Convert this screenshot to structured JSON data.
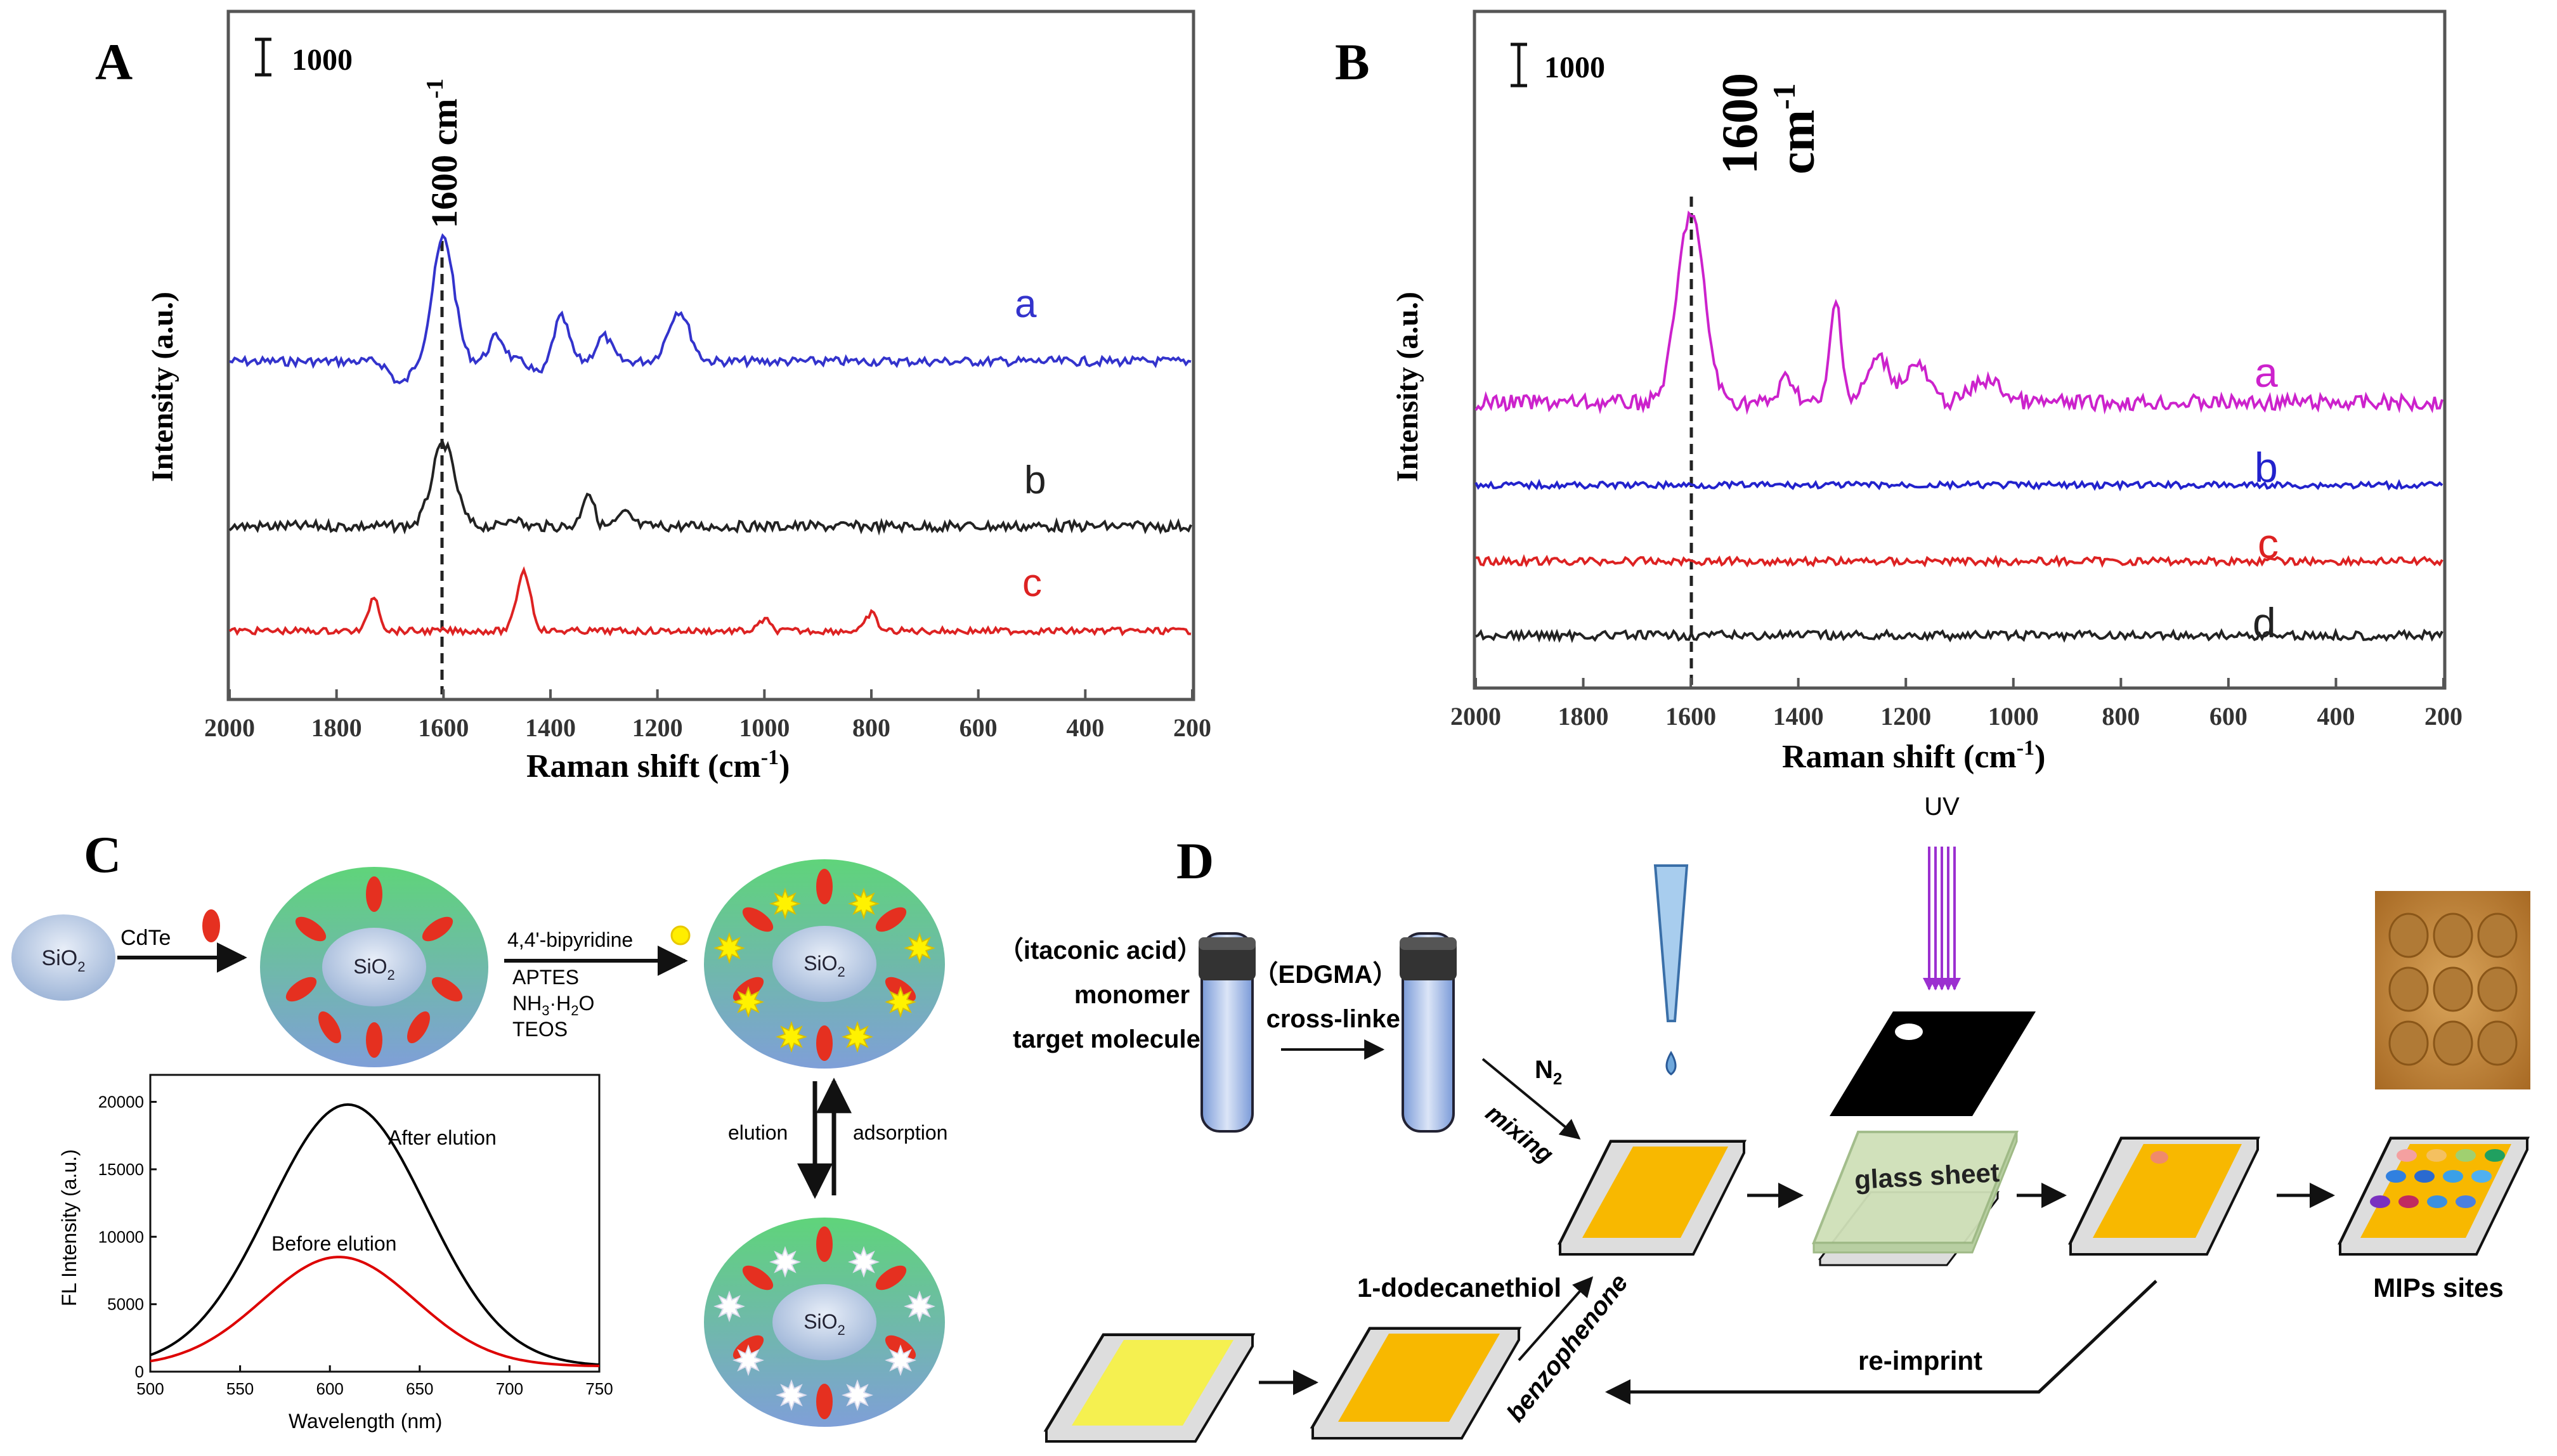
{
  "panelA": {
    "letter": "A",
    "scale_label": "1000",
    "peak_label": "1600 cm",
    "peak_sup": "-1",
    "xlabel": "Raman shift (cm",
    "xlabel_sup": "-1",
    "xlabel_end": ")",
    "ylabel": "Intensity (a.u.)",
    "ticks": [
      "2000",
      "1800",
      "1600",
      "1400",
      "1200",
      "1000",
      "800",
      "600",
      "400",
      "200"
    ],
    "traces": [
      {
        "label": "a",
        "color": "#3333cc"
      },
      {
        "label": "b",
        "color": "#222222"
      },
      {
        "label": "c",
        "color": "#dd2222"
      }
    ]
  },
  "panelB": {
    "letter": "B",
    "scale_label": "1000",
    "peak_label": "1600",
    "peak_label2": "cm",
    "peak_sup": "-1",
    "xlabel": "Raman shift (cm",
    "xlabel_sup": "-1",
    "xlabel_end": ")",
    "ylabel": "Intensity (a.u.)",
    "ticks": [
      "2000",
      "1800",
      "1600",
      "1400",
      "1200",
      "1000",
      "800",
      "600",
      "400",
      "200"
    ],
    "traces": [
      {
        "label": "a",
        "color": "#cc22cc"
      },
      {
        "label": "b",
        "color": "#2222cc"
      },
      {
        "label": "c",
        "color": "#dd2222"
      },
      {
        "label": "d",
        "color": "#222222"
      }
    ]
  },
  "panelC": {
    "letter": "C",
    "sio2": "SiO",
    "sub2": "2",
    "cdte": "CdTe",
    "reagent1": "4,4'-bipyridine",
    "reagent2": "APTES",
    "reagent3": "NH",
    "reagent3b": "3",
    "reagent3c": "·H",
    "reagent3d": "2",
    "reagent3e": "O",
    "reagent4": "TEOS",
    "elution": "elution",
    "adsorption": "adsorption",
    "chart_data": {
      "type": "line",
      "xlabel": "Wavelength  (nm)",
      "ylabel": "FL Intensity  (a.u.)",
      "xlim": [
        500,
        750
      ],
      "ylim": [
        0,
        22000
      ],
      "xticks": [
        "500",
        "550",
        "600",
        "650",
        "700",
        "750"
      ],
      "yticks": [
        "0",
        "5000",
        "10000",
        "15000",
        "20000"
      ],
      "series": [
        {
          "name": "After elution",
          "color": "#000000",
          "peak_x": 610,
          "peak_y": 19800,
          "sigma": 62,
          "base": 400
        },
        {
          "name": "Before elution",
          "color": "#dd0000",
          "peak_x": 605,
          "peak_y": 8500,
          "sigma": 60,
          "base": 400
        }
      ]
    }
  },
  "panelD": {
    "letter": "D",
    "mono1": "（itaconic acid）",
    "mono2": "monomer",
    "mono3": "target molecule",
    "cross1": "（EDGMA）",
    "cross2": "cross-linker",
    "n2": "N",
    "n2sub": "2",
    "mixing": "mixing",
    "uv": "UV",
    "glass": "glass sheet",
    "mips": "MIPs sites",
    "dodecane": "1-dodecanethiol",
    "benzophenone": "benzophenone",
    "reimprint": "re-imprint"
  }
}
